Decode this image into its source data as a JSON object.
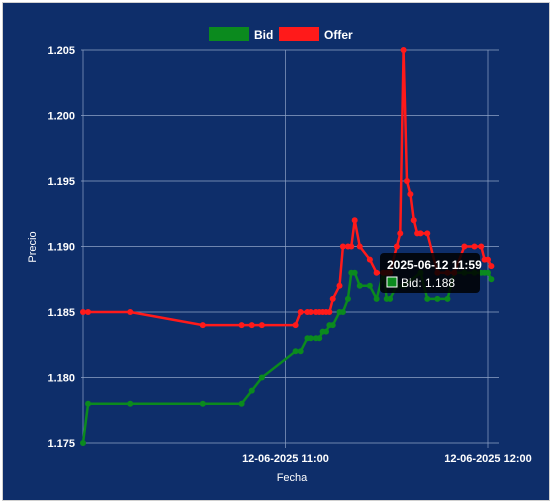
{
  "chart_data": {
    "type": "line",
    "xlabel": "Fecha",
    "ylabel": "Precio",
    "ylim": [
      1.175,
      1.205
    ],
    "yticks": [
      "1.175",
      "1.180",
      "1.185",
      "1.190",
      "1.195",
      "1.200",
      "1.205"
    ],
    "ytick_values": [
      1.175,
      1.18,
      1.185,
      1.19,
      1.195,
      1.2,
      1.205
    ],
    "xlim_minutes": [
      10,
      130
    ],
    "xticks": [
      {
        "label": "12-06-2025 11:00",
        "minute": 70
      },
      {
        "label": "12-06-2025 12:00",
        "minute": 130
      }
    ],
    "grid": true,
    "legend_position": "top",
    "series": [
      {
        "name": "Bid",
        "color": "#0b8a1e",
        "points": [
          [
            10.0,
            1.175
          ],
          [
            11.5,
            1.178
          ],
          [
            24,
            1.178
          ],
          [
            45.5,
            1.178
          ],
          [
            57,
            1.178
          ],
          [
            60,
            1.179
          ],
          [
            63,
            1.18
          ],
          [
            73,
            1.182
          ],
          [
            74.5,
            1.182
          ],
          [
            76.5,
            1.183
          ],
          [
            77.5,
            1.183
          ],
          [
            79,
            1.183
          ],
          [
            80,
            1.183
          ],
          [
            81,
            1.1835
          ],
          [
            82,
            1.1835
          ],
          [
            83,
            1.184
          ],
          [
            84,
            1.184
          ],
          [
            86,
            1.185
          ],
          [
            87,
            1.185
          ],
          [
            88.5,
            1.186
          ],
          [
            89.5,
            1.188
          ],
          [
            90.5,
            1.188
          ],
          [
            92,
            1.187
          ],
          [
            95,
            1.187
          ],
          [
            97,
            1.186
          ],
          [
            99,
            1.188
          ],
          [
            100,
            1.186
          ],
          [
            101,
            1.186
          ],
          [
            103,
            1.187
          ],
          [
            105,
            1.187
          ],
          [
            110,
            1.188
          ],
          [
            112,
            1.186
          ],
          [
            115,
            1.186
          ],
          [
            118,
            1.186
          ],
          [
            120,
            1.188
          ],
          [
            123,
            1.188
          ],
          [
            126,
            1.188
          ],
          [
            128,
            1.188
          ],
          [
            129,
            1.188
          ],
          [
            130,
            1.188
          ],
          [
            131,
            1.1875
          ]
        ]
      },
      {
        "name": "Offer",
        "color": "#ff1a1a",
        "points": [
          [
            10.0,
            1.185
          ],
          [
            11.5,
            1.185
          ],
          [
            24,
            1.185
          ],
          [
            45.5,
            1.184
          ],
          [
            57,
            1.184
          ],
          [
            60,
            1.184
          ],
          [
            63,
            1.184
          ],
          [
            73,
            1.184
          ],
          [
            74.5,
            1.185
          ],
          [
            76.5,
            1.185
          ],
          [
            77.5,
            1.185
          ],
          [
            79,
            1.185
          ],
          [
            80,
            1.185
          ],
          [
            81,
            1.185
          ],
          [
            82,
            1.185
          ],
          [
            83,
            1.185
          ],
          [
            84,
            1.186
          ],
          [
            86,
            1.187
          ],
          [
            87,
            1.19
          ],
          [
            88.5,
            1.19
          ],
          [
            89.5,
            1.19
          ],
          [
            90.5,
            1.192
          ],
          [
            92,
            1.19
          ],
          [
            95,
            1.189
          ],
          [
            97,
            1.188
          ],
          [
            99,
            1.188
          ],
          [
            100,
            1.188
          ],
          [
            101,
            1.188
          ],
          [
            103,
            1.19
          ],
          [
            104,
            1.191
          ],
          [
            105,
            1.205
          ],
          [
            106,
            1.195
          ],
          [
            107,
            1.194
          ],
          [
            108,
            1.192
          ],
          [
            109,
            1.191
          ],
          [
            110,
            1.191
          ],
          [
            112,
            1.191
          ],
          [
            115,
            1.188
          ],
          [
            118,
            1.188
          ],
          [
            120,
            1.188
          ],
          [
            123,
            1.19
          ],
          [
            126,
            1.19
          ],
          [
            128,
            1.19
          ],
          [
            129,
            1.189
          ],
          [
            130,
            1.189
          ],
          [
            131,
            1.1885
          ]
        ]
      }
    ],
    "tooltip": {
      "title": "2025-06-12 11:59",
      "body": "Bid: 1.188",
      "series_color": "#0b8a1e"
    }
  }
}
